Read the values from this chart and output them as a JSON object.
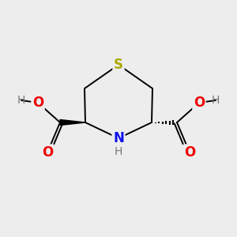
{
  "bg_color": "#ededee",
  "S_color": "#aaaa00",
  "N_color": "#1111ee",
  "O_color": "#ee0000",
  "H_color": "#777777",
  "bond_color": "#000000",
  "S_label": "S",
  "N_label": "N",
  "H_label": "H",
  "O_label": "O",
  "font_size_atom": 12,
  "font_size_h": 10,
  "line_width": 1.4
}
